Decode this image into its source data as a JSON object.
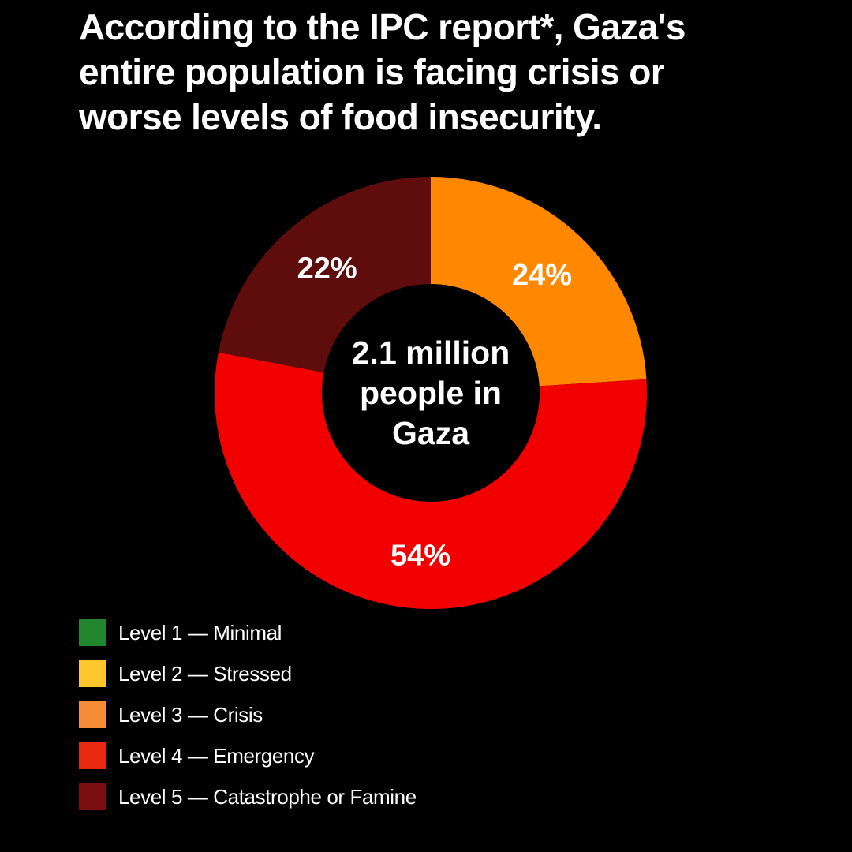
{
  "headline": {
    "lines": [
      "According to the IPC report*, Gaza's",
      "entire population is facing crisis or",
      "worse levels of food insecurity."
    ]
  },
  "chart_data": {
    "type": "pie",
    "style": "donut",
    "center_label": [
      "2.1 million",
      "people in",
      "Gaza"
    ],
    "slices": [
      {
        "label": "Level 3 — Crisis",
        "value": 24,
        "display": "24%",
        "color": "#ff8800"
      },
      {
        "label": "Level 4 — Emergency",
        "value": 54,
        "display": "54%",
        "color": "#f20000"
      },
      {
        "label": "Level 5 — Catastrophe or Famine",
        "value": 22,
        "display": "22%",
        "color": "#5e0c0c"
      }
    ],
    "legend_position": "bottom-left"
  },
  "legend": {
    "items": [
      {
        "label": "Level 1 — Minimal",
        "color": "#22862e"
      },
      {
        "label": "Level 2 — Stressed",
        "color": "#ffc72c"
      },
      {
        "label": "Level 3 — Crisis",
        "color": "#f58d36"
      },
      {
        "label": "Level 4 — Emergency",
        "color": "#e8280f"
      },
      {
        "label": "Level 5 — Catastrophe or Famine",
        "color": "#7a0e0e"
      }
    ]
  },
  "colors": {
    "background": "#000000",
    "text": "#ffffff"
  }
}
